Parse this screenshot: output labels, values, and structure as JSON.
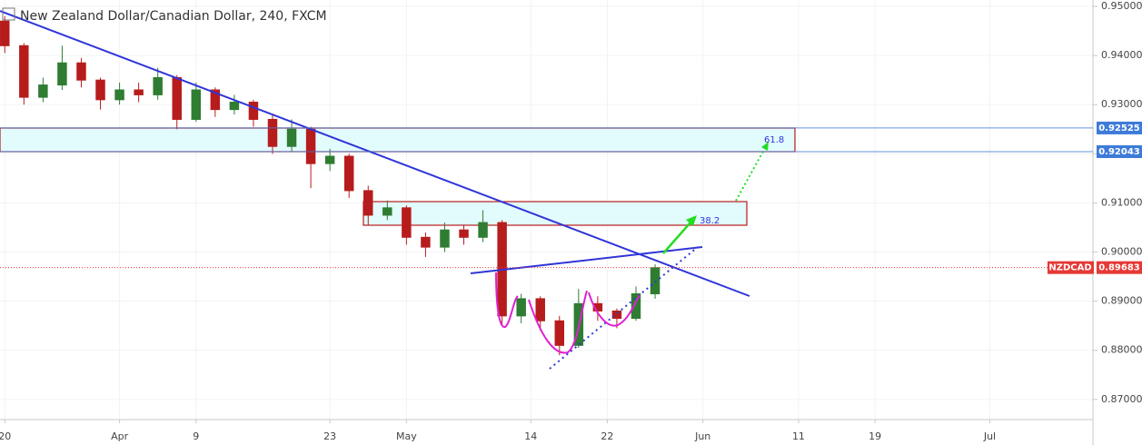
{
  "chart_data": {
    "type": "candlestick",
    "title": "New Zealand Dollar/Canadian Dollar, 240, FXCM",
    "symbol": "NZDCAD",
    "up_color": "#2e7d32",
    "down_color": "#b71c1c",
    "x": [
      0,
      2,
      4,
      6,
      8,
      10,
      12,
      14,
      16,
      18,
      20,
      22,
      24,
      26,
      28,
      30,
      32,
      34,
      36,
      38,
      40,
      42,
      44,
      46,
      48,
      50,
      52,
      54,
      56,
      58,
      60,
      62,
      64,
      66,
      68
    ],
    "open": [
      0.947,
      0.942,
      0.9315,
      0.934,
      0.9385,
      0.935,
      0.931,
      0.933,
      0.932,
      0.9355,
      0.927,
      0.933,
      0.929,
      0.9305,
      0.927,
      0.9215,
      0.925,
      0.918,
      0.9195,
      0.9125,
      0.9075,
      0.909,
      0.903,
      0.901,
      0.9045,
      0.903,
      0.906,
      0.887,
      0.8905,
      0.886,
      0.881,
      0.8895,
      0.888,
      0.8865,
      0.8915
    ],
    "high": [
      0.948,
      0.9425,
      0.9355,
      0.942,
      0.9395,
      0.9355,
      0.9345,
      0.9345,
      0.9375,
      0.936,
      0.9345,
      0.9335,
      0.932,
      0.931,
      0.928,
      0.927,
      0.9255,
      0.921,
      0.92,
      0.9135,
      0.9105,
      0.9095,
      0.904,
      0.906,
      0.9055,
      0.9085,
      0.9065,
      0.8915,
      0.891,
      0.887,
      0.8925,
      0.891,
      0.8885,
      0.893,
      0.8975
    ],
    "low": [
      0.9405,
      0.93,
      0.9305,
      0.933,
      0.9335,
      0.929,
      0.93,
      0.9305,
      0.931,
      0.925,
      0.9265,
      0.9275,
      0.928,
      0.9255,
      0.92,
      0.9205,
      0.913,
      0.9165,
      0.911,
      0.9055,
      0.9065,
      0.9015,
      0.899,
      0.9,
      0.9015,
      0.902,
      0.885,
      0.8855,
      0.884,
      0.879,
      0.8805,
      0.886,
      0.8845,
      0.886,
      0.8905
    ],
    "close": [
      0.942,
      0.9315,
      0.934,
      0.9385,
      0.935,
      0.931,
      0.933,
      0.932,
      0.9355,
      0.927,
      0.933,
      0.929,
      0.9305,
      0.927,
      0.9215,
      0.925,
      0.918,
      0.9195,
      0.9125,
      0.9075,
      0.909,
      0.903,
      0.901,
      0.9045,
      0.903,
      0.906,
      0.887,
      0.8905,
      0.886,
      0.881,
      0.8895,
      0.888,
      0.8865,
      0.8915,
      0.8968
    ],
    "xlim": [
      -0.5,
      113.5
    ],
    "xticks": [
      {
        "value": 0,
        "label": "20"
      },
      {
        "value": 12,
        "label": "Apr"
      },
      {
        "value": 20,
        "label": "9"
      },
      {
        "value": 34,
        "label": "23"
      },
      {
        "value": 42,
        "label": "May"
      },
      {
        "value": 55,
        "label": "14"
      },
      {
        "value": 63,
        "label": "22"
      },
      {
        "value": 73,
        "label": "Jun"
      },
      {
        "value": 83,
        "label": "11"
      },
      {
        "value": 91,
        "label": "19"
      },
      {
        "value": 103,
        "label": "Jul"
      }
    ],
    "ylim": [
      0.8659,
      0.9513
    ],
    "yticks": [
      {
        "value": 0.87,
        "label": "0.87000"
      },
      {
        "value": 0.88,
        "label": "0.88000"
      },
      {
        "value": 0.89,
        "label": "0.89000"
      },
      {
        "value": 0.9,
        "label": "0.90000"
      },
      {
        "value": 0.91,
        "label": "0.91000"
      },
      {
        "value": 0.92,
        "label": "0.92000"
      },
      {
        "value": 0.93,
        "label": "0.93000"
      },
      {
        "value": 0.94,
        "label": "0.94000"
      },
      {
        "value": 0.95,
        "label": "0.95000"
      }
    ],
    "price_labels": [
      {
        "value": 0.92525,
        "label": "0.92525",
        "color": "#3d7bd9"
      },
      {
        "value": 0.92043,
        "label": "0.92043",
        "color": "#3d7bd9"
      },
      {
        "value": 0.89683,
        "label": "0.89683",
        "color": "#e53935"
      }
    ],
    "annotations": [
      "61.8",
      "38.2"
    ]
  }
}
